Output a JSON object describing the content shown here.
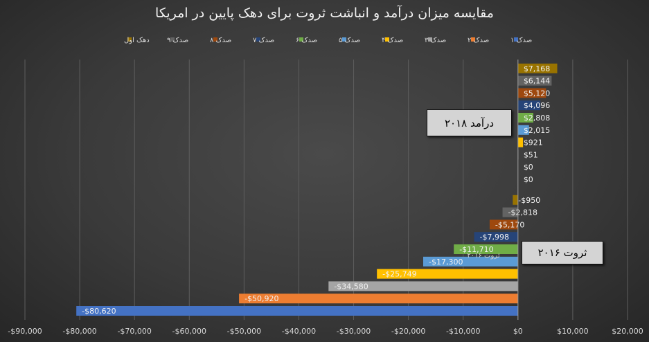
{
  "chart_data": {
    "type": "bar",
    "orientation": "horizontal",
    "title": "مقایسه میزان درآمد و انباشت ثروت برای دهک پایین در امریکا",
    "legend_position": "top",
    "legend": [
      {
        "name": "صدک ۱",
        "color": "#4472c4"
      },
      {
        "name": "صدک ۲",
        "color": "#ed7d31"
      },
      {
        "name": "صدک ۳",
        "color": "#a5a5a5"
      },
      {
        "name": "صدک ۴",
        "color": "#ffc000"
      },
      {
        "name": "صدک ۵",
        "color": "#5b9bd5"
      },
      {
        "name": "صدک ۶",
        "color": "#70ad47"
      },
      {
        "name": "صدک ۷",
        "color": "#264478"
      },
      {
        "name": "صدک ۸",
        "color": "#9e480e"
      },
      {
        "name": "صدک ۹",
        "color": "#636363"
      },
      {
        "name": "دهک اول",
        "color": "#997300"
      }
    ],
    "groups": [
      {
        "name": "درآمد ۲۰۱۸",
        "values": [
          0,
          0,
          51,
          921,
          2015,
          2808,
          4096,
          5120,
          6144,
          7168
        ],
        "labels": [
          "$0",
          "$0",
          "$51",
          "$921",
          "$2,015",
          "$2,808",
          "$4,096",
          "$5,120",
          "$6,144",
          "$7,168"
        ]
      },
      {
        "name": "ثروت ۲۰۱۶",
        "values": [
          -80620,
          -50920,
          -34580,
          -25749,
          -17300,
          -11710,
          -7998,
          -5170,
          -2818,
          -950
        ],
        "labels": [
          "-$80,620",
          "-$50,920",
          "-$34,580",
          "-$25,749",
          "-$17,300",
          "-$11,710",
          "-$7,998",
          "-$5,170",
          "-$2,818",
          "-$950"
        ]
      }
    ],
    "x_ticks": [
      -90000,
      -80000,
      -70000,
      -60000,
      -50000,
      -40000,
      -30000,
      -20000,
      -10000,
      0,
      10000,
      20000
    ],
    "x_tick_labels": [
      "-$90,000",
      "-$80,000",
      "-$70,000",
      "-$60,000",
      "-$50,000",
      "-$40,000",
      "-$30,000",
      "-$20,000",
      "-$10,000",
      "$0",
      "$10,000",
      "$20,000"
    ],
    "xlim": [
      -90000,
      20000
    ],
    "grid": true,
    "stray_label": "ثروت ۲۰۱۶"
  }
}
